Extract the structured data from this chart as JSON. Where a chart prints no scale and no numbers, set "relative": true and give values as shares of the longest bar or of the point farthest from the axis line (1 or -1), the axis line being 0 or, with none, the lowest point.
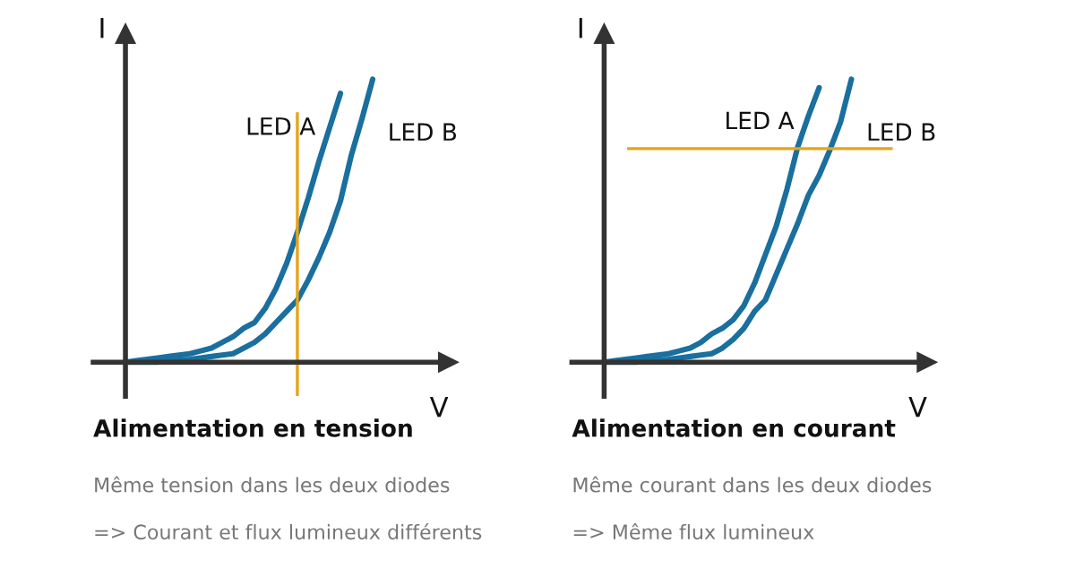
{
  "chart_data": [
    {
      "type": "line",
      "relative": true,
      "xlabel": "V",
      "ylabel": "I",
      "title": "Alimentation en tension",
      "annotations": [
        "Même tension dans les deux diodes",
        "=> Courant et flux lumineux différents"
      ],
      "categories": [
        null,
        null,
        null,
        null,
        null,
        null,
        null,
        null,
        null,
        null,
        null,
        null,
        null,
        null,
        null,
        null,
        null,
        null,
        null,
        null,
        null,
        null,
        null,
        null,
        null,
        null,
        null,
        null,
        null,
        null,
        null
      ],
      "series": [
        {
          "name": "LED A",
          "color": "#1a6f9e",
          "values": [
            0,
            0.005,
            0.01,
            0.015,
            0.02,
            0.025,
            0.03,
            0.04,
            0.05,
            0.07,
            0.09,
            0.12,
            0.14,
            0.19,
            0.26,
            0.35,
            0.46,
            0.58,
            0.71,
            0.83,
            0.95,
            null,
            null,
            null,
            null,
            null,
            null,
            null,
            null,
            null,
            null
          ]
        },
        {
          "name": "LED B",
          "color": "#1a6f9e",
          "values": [
            0,
            0,
            0,
            0,
            0.005,
            0.008,
            0.01,
            0.015,
            0.02,
            0.025,
            0.03,
            0.05,
            0.07,
            0.1,
            0.14,
            0.18,
            0.22,
            0.29,
            0.37,
            0.46,
            0.57,
            0.73,
            0.86,
            1.0,
            null,
            null,
            null,
            null,
            null,
            null,
            null
          ]
        }
      ]
    },
    {
      "type": "line",
      "relative": true,
      "xlabel": "V",
      "ylabel": "I",
      "title": "Alimentation en courant",
      "annotations": [
        "Même courant dans les deux diodes",
        "=> Même flux lumineux"
      ],
      "categories": [
        null,
        null,
        null,
        null,
        null,
        null,
        null,
        null,
        null,
        null,
        null,
        null,
        null,
        null,
        null,
        null,
        null,
        null,
        null,
        null,
        null,
        null,
        null,
        null,
        null,
        null,
        null,
        null,
        null,
        null,
        null
      ],
      "series": [
        {
          "name": "LED A",
          "color": "#1a6f9e",
          "values": [
            0,
            0.005,
            0.01,
            0.015,
            0.02,
            0.025,
            0.03,
            0.04,
            0.05,
            0.07,
            0.1,
            0.12,
            0.15,
            0.2,
            0.28,
            0.38,
            0.48,
            0.61,
            0.76,
            0.87,
            0.97,
            null,
            null,
            null,
            null,
            null,
            null,
            null,
            null,
            null,
            null
          ]
        },
        {
          "name": "LED B",
          "color": "#1a6f9e",
          "values": [
            0,
            0,
            0,
            0,
            0.005,
            0.008,
            0.01,
            0.015,
            0.02,
            0.025,
            0.03,
            0.05,
            0.08,
            0.12,
            0.18,
            0.22,
            0.31,
            0.4,
            0.49,
            0.59,
            0.66,
            0.75,
            0.85,
            1.0,
            null,
            null,
            null,
            null,
            null,
            null,
            null
          ]
        }
      ],
      "ref_lines": [
        {
          "axis": "y",
          "value": 0.755,
          "color": "#e8a317"
        }
      ]
    }
  ]
}
